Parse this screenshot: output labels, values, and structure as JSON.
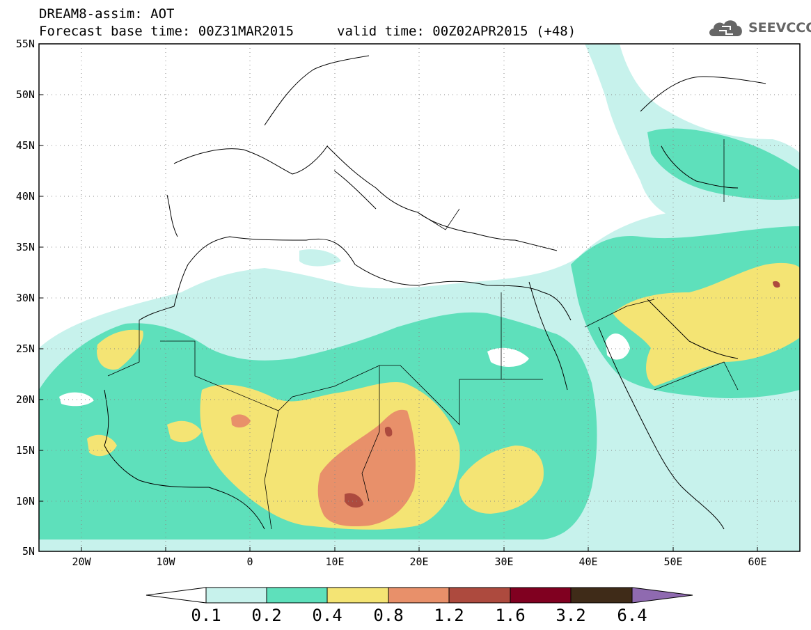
{
  "header": {
    "title_line1": "DREAM8-assim: AOT",
    "title_line2": "Forecast base time: 00Z31MAR2015",
    "valid_time": "valid time: 00Z02APR2015 (+48)",
    "logo_text": "SEEVCCC",
    "logo_icon": "cloud-icon"
  },
  "map": {
    "lat_labels": [
      "55N",
      "50N",
      "45N",
      "40N",
      "35N",
      "30N",
      "25N",
      "20N",
      "15N",
      "10N",
      "5N"
    ],
    "lon_labels": [
      "20W",
      "10W",
      "0",
      "10E",
      "20E",
      "30E",
      "40E",
      "50E",
      "60E"
    ],
    "lat_range": [
      5,
      55
    ],
    "lon_range": [
      -25,
      65
    ],
    "gridlines": "dotted"
  },
  "colorbar": {
    "labels": [
      "0.1",
      "0.2",
      "0.4",
      "0.8",
      "1.2",
      "1.6",
      "3.2",
      "6.4"
    ],
    "colors": [
      "#ffffff",
      "#c7f2ec",
      "#5ee0bb",
      "#f4e474",
      "#e8906a",
      "#ad4a3e",
      "#800020",
      "#3f2b18",
      "#8f6ab0"
    ]
  },
  "colors": {
    "c_0_1": "#c7f2ec",
    "c_0_2": "#5ee0bb",
    "c_0_4": "#f4e474",
    "c_0_8": "#e8906a",
    "c_1_2": "#ad4a3e"
  }
}
